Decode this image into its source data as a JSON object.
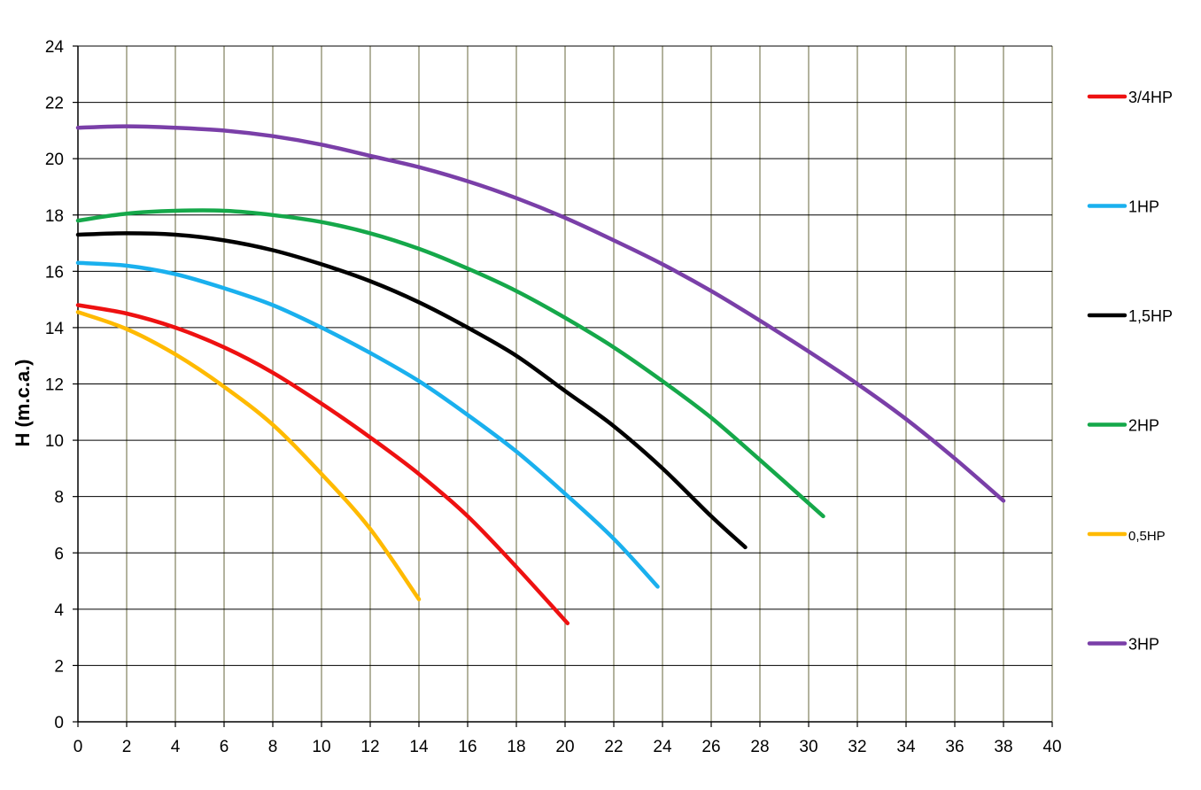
{
  "chart_data": {
    "type": "line",
    "title": "",
    "xlabel": "",
    "ylabel": "H (m.c.a.)",
    "xlim": [
      0,
      40
    ],
    "ylim": [
      0,
      24
    ],
    "x_ticks": [
      0,
      2,
      4,
      6,
      8,
      10,
      12,
      14,
      16,
      18,
      20,
      22,
      24,
      26,
      28,
      30,
      32,
      34,
      36,
      38,
      40
    ],
    "y_ticks": [
      0,
      2,
      4,
      6,
      8,
      10,
      12,
      14,
      16,
      18,
      20,
      22,
      24
    ],
    "grid": true,
    "legend_position": "right",
    "series": [
      {
        "name": "3/4HP",
        "color": "#ee1111",
        "x": [
          0,
          2,
          4,
          6,
          8,
          10,
          12,
          14,
          16,
          18,
          20.1
        ],
        "y": [
          14.8,
          14.5,
          14.0,
          13.3,
          12.4,
          11.3,
          10.1,
          8.8,
          7.3,
          5.5,
          3.5
        ]
      },
      {
        "name": "1HP",
        "color": "#1ab0ee",
        "x": [
          0,
          2,
          4,
          6,
          8,
          10,
          12,
          14,
          16,
          18,
          20,
          22,
          23.8
        ],
        "y": [
          16.3,
          16.2,
          15.9,
          15.4,
          14.8,
          14.0,
          13.1,
          12.1,
          10.9,
          9.6,
          8.1,
          6.5,
          4.8
        ]
      },
      {
        "name": "1,5HP",
        "color": "#000000",
        "x": [
          0,
          2,
          4,
          6,
          8,
          10,
          12,
          14,
          16,
          18,
          20,
          22,
          24,
          26,
          27.4
        ],
        "y": [
          17.3,
          17.35,
          17.3,
          17.1,
          16.75,
          16.25,
          15.65,
          14.9,
          14.0,
          13.0,
          11.75,
          10.5,
          9.0,
          7.3,
          6.2
        ]
      },
      {
        "name": "2HP",
        "color": "#15a84a",
        "x": [
          0,
          2,
          4,
          6,
          8,
          10,
          12,
          14,
          16,
          18,
          20,
          22,
          24,
          26,
          28,
          30.6
        ],
        "y": [
          17.8,
          18.05,
          18.15,
          18.15,
          18.0,
          17.75,
          17.35,
          16.8,
          16.1,
          15.3,
          14.35,
          13.3,
          12.1,
          10.8,
          9.3,
          7.3
        ]
      },
      {
        "name": "0,5HP",
        "color": "#ffba00",
        "x": [
          0,
          2,
          4,
          6,
          8,
          10,
          12,
          14
        ],
        "y": [
          14.55,
          13.95,
          13.05,
          11.9,
          10.55,
          8.8,
          6.85,
          4.35
        ]
      },
      {
        "name": "3HP",
        "color": "#7a3fa8",
        "x": [
          0,
          2,
          4,
          6,
          8,
          10,
          12,
          14,
          16,
          18,
          20,
          22,
          24,
          26,
          28,
          30,
          32,
          34,
          36,
          38
        ],
        "y": [
          21.1,
          21.15,
          21.1,
          21.0,
          20.8,
          20.5,
          20.1,
          19.7,
          19.2,
          18.6,
          17.9,
          17.1,
          16.25,
          15.3,
          14.25,
          13.15,
          12.0,
          10.75,
          9.35,
          7.85
        ]
      }
    ]
  }
}
